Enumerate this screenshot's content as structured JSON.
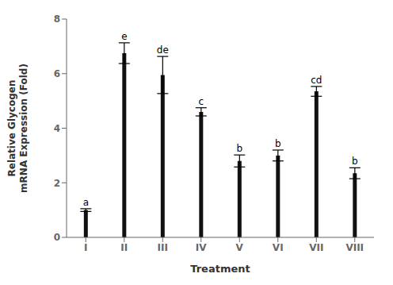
{
  "chart_data": {
    "type": "bar",
    "categories": [
      "I",
      "II",
      "III",
      "IV",
      "V",
      "VI",
      "VII",
      "VIII"
    ],
    "values": [
      1.0,
      6.75,
      5.95,
      4.6,
      2.8,
      3.0,
      5.35,
      2.35
    ],
    "errors": [
      0.05,
      0.38,
      0.68,
      0.15,
      0.22,
      0.2,
      0.18,
      0.2
    ],
    "annotations": [
      "a",
      "e",
      "de",
      "c",
      "b",
      "b",
      "cd",
      "b"
    ],
    "color": "#111111",
    "xlabel": "Treatment",
    "ylabel": "Relative Glycogen\nmRNA Expression (Fold)",
    "ylim": [
      0,
      8
    ],
    "yticks": [
      0,
      2,
      4,
      6,
      8
    ],
    "grid": false
  }
}
